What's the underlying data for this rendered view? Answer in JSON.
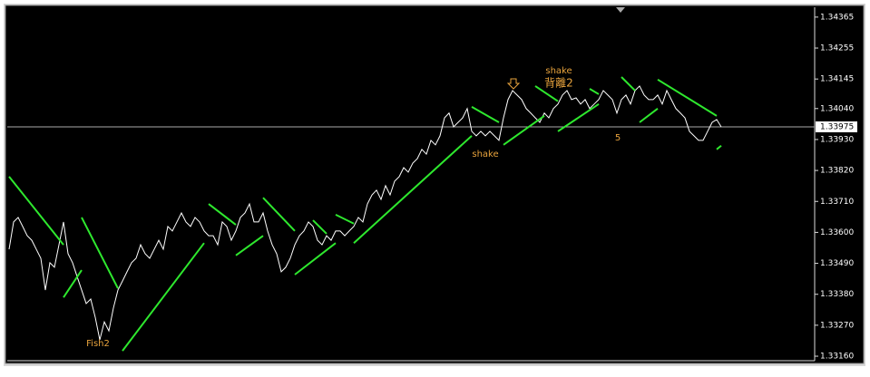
{
  "chart_data": {
    "type": "line",
    "series": [
      {
        "color": "#ffffff",
        "values": [
          1.3354,
          1.33637,
          1.33653,
          1.33621,
          1.33588,
          1.33572,
          1.3354,
          1.33508,
          1.33395,
          1.33492,
          1.33476,
          1.33556,
          1.33637,
          1.33524,
          1.33492,
          1.33443,
          1.33395,
          1.33347,
          1.33363,
          1.33298,
          1.33218,
          1.33282,
          1.3325,
          1.33331,
          1.33395,
          1.33427,
          1.3346,
          1.33492,
          1.33508,
          1.33556,
          1.33524,
          1.33508,
          1.3354,
          1.33572,
          1.3354,
          1.33621,
          1.33605,
          1.33637,
          1.33669,
          1.33637,
          1.33621,
          1.33653,
          1.33637,
          1.33605,
          1.33588,
          1.33588,
          1.33556,
          1.33637,
          1.33621,
          1.33572,
          1.33605,
          1.33653,
          1.33669,
          1.33701,
          1.33637,
          1.33637,
          1.33669,
          1.33605,
          1.33556,
          1.33524,
          1.3346,
          1.33476,
          1.33508,
          1.33556,
          1.33588,
          1.33605,
          1.33637,
          1.33621,
          1.33572,
          1.33556,
          1.33588,
          1.33572,
          1.33605,
          1.33605,
          1.33588,
          1.33605,
          1.33621,
          1.33653,
          1.33637,
          1.33701,
          1.33733,
          1.3375,
          1.33717,
          1.33766,
          1.33733,
          1.33782,
          1.33798,
          1.3383,
          1.33814,
          1.33846,
          1.33862,
          1.33895,
          1.33878,
          1.33927,
          1.33911,
          1.33943,
          1.34007,
          1.34024,
          1.33975,
          1.33991,
          1.34007,
          1.3404,
          1.33959,
          1.33943,
          1.33959,
          1.33943,
          1.33959,
          1.33943,
          1.33927,
          1.34007,
          1.34072,
          1.34104,
          1.34088,
          1.34072,
          1.3404,
          1.34024,
          1.34007,
          1.33991,
          1.34024,
          1.34007,
          1.3404,
          1.34056,
          1.34088,
          1.34104,
          1.34072,
          1.34078,
          1.34056,
          1.34072,
          1.3404,
          1.34056,
          1.34072,
          1.34104,
          1.34088,
          1.34072,
          1.34024,
          1.34072,
          1.34088,
          1.34056,
          1.34104,
          1.3412,
          1.34088,
          1.34072,
          1.34072,
          1.34088,
          1.34056,
          1.34104,
          1.34072,
          1.3404,
          1.34024,
          1.34007,
          1.33959,
          1.33943,
          1.33927,
          1.33927,
          1.33959,
          1.33991,
          1.34001,
          1.33975
        ]
      }
    ],
    "segment_color": "#2ee82e",
    "segments": [
      {
        "x": [
          0,
          12
        ],
        "values": [
          1.33798,
          1.33556
        ]
      },
      {
        "x": [
          16,
          24
        ],
        "values": [
          1.33653,
          1.33401
        ]
      },
      {
        "x": [
          44,
          50
        ],
        "values": [
          1.33701,
          1.33627
        ]
      },
      {
        "x": [
          56,
          63
        ],
        "values": [
          1.33723,
          1.33605
        ]
      },
      {
        "x": [
          67,
          70
        ],
        "values": [
          1.33643,
          1.33595
        ]
      },
      {
        "x": [
          72,
          76
        ],
        "values": [
          1.33663,
          1.33631
        ]
      },
      {
        "x": [
          102,
          108
        ],
        "values": [
          1.34046,
          1.33991
        ]
      },
      {
        "x": [
          116,
          121
        ],
        "values": [
          1.3412,
          1.34066
        ]
      },
      {
        "x": [
          128,
          130
        ],
        "values": [
          1.3411,
          1.34091
        ]
      },
      {
        "x": [
          135,
          138
        ],
        "values": [
          1.34152,
          1.34104
        ]
      },
      {
        "x": [
          143,
          156
        ],
        "values": [
          1.34143,
          1.34014
        ]
      },
      {
        "x": [
          12,
          16
        ],
        "values": [
          1.33369,
          1.33466
        ]
      },
      {
        "x": [
          25,
          43
        ],
        "values": [
          1.33179,
          1.33562
        ]
      },
      {
        "x": [
          50,
          56
        ],
        "values": [
          1.33518,
          1.33588
        ]
      },
      {
        "x": [
          63,
          72
        ],
        "values": [
          1.3345,
          1.33562
        ]
      },
      {
        "x": [
          76,
          102
        ],
        "values": [
          1.33562,
          1.33943
        ]
      },
      {
        "x": [
          109,
          118
        ],
        "values": [
          1.33911,
          1.34014
        ]
      },
      {
        "x": [
          121,
          130
        ],
        "values": [
          1.33959,
          1.34056
        ]
      },
      {
        "x": [
          139,
          143
        ],
        "values": [
          1.33991,
          1.3404
        ]
      },
      {
        "x": [
          156,
          157
        ],
        "values": [
          1.33895,
          1.33908
        ]
      }
    ],
    "current_price": 1.33975,
    "annotations": [
      "shake",
      "背離2",
      "shake",
      "5",
      "Fish2"
    ],
    "annotation_color": "#e8a33d",
    "ylim": [
      1.33144,
      1.344
    ],
    "yticks": [
      1.34365,
      1.34255,
      1.34145,
      {
        "value": 1.3404,
        "label": "1.34040"
      },
      {
        "value": 1.3393,
        "label": "1.33930"
      },
      {
        "value": 1.3382,
        "label": "1.33820"
      },
      {
        "value": 1.3371,
        "label": "1.33710"
      },
      {
        "value": 1.336,
        "label": "1.33600"
      },
      {
        "value": 1.3349,
        "label": "1.33490"
      },
      {
        "value": 1.3338,
        "label": "1.33380"
      },
      {
        "value": 1.3327,
        "label": "1.33270"
      },
      {
        "value": 1.3316,
        "label": "1.33160"
      }
    ]
  }
}
